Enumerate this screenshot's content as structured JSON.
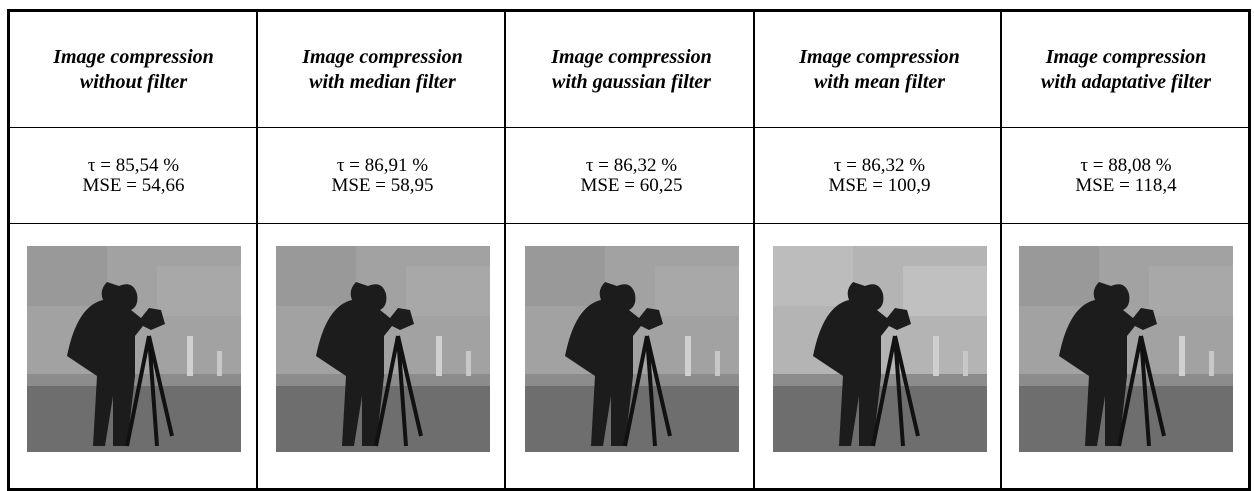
{
  "table": {
    "headers": [
      [
        "Image compression",
        "without filter"
      ],
      [
        "Image compression",
        "with median filter"
      ],
      [
        "Image compression",
        "with gaussian filter"
      ],
      [
        "Image compression",
        "with mean filter"
      ],
      [
        "Image compression",
        "with adaptative filter"
      ]
    ],
    "metrics": [
      [
        "τ = 85,54 %",
        "MSE = 54,66"
      ],
      [
        "τ = 86,91 %",
        "MSE = 58,95"
      ],
      [
        "τ = 86,32 %",
        "MSE = 60,25"
      ],
      [
        "τ = 86,32 %",
        "MSE = 100,9"
      ],
      [
        "τ = 88,08 %",
        "MSE = 118,4"
      ]
    ]
  }
}
